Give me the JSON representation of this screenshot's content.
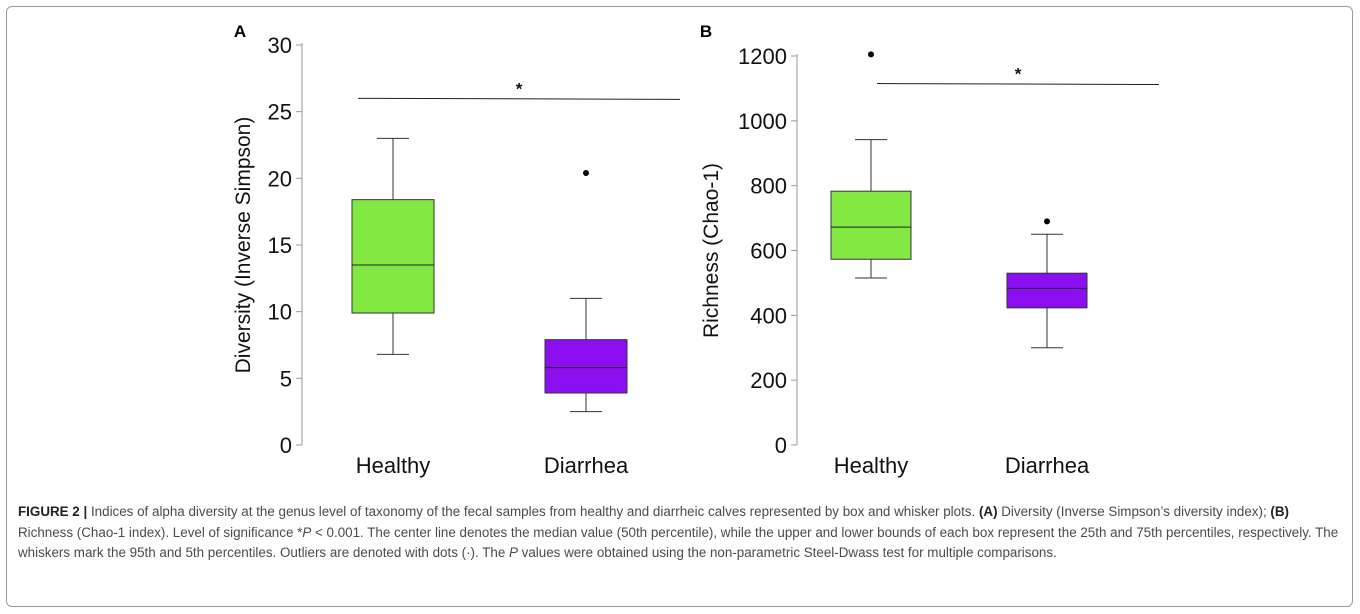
{
  "chart_data": [
    {
      "panel_label": "A",
      "type": "box",
      "ylabel": "Diversity (Inverse Simpson)",
      "xlabel": "",
      "categories": [
        "Healthy",
        "Diarrhea"
      ],
      "ylim": [
        0,
        30
      ],
      "yticks": [
        0,
        5,
        10,
        15,
        20,
        25,
        30
      ],
      "grid": false,
      "boxes": [
        {
          "category": "Healthy",
          "whisker_low": 6.8,
          "q1": 9.9,
          "median": 13.5,
          "q3": 18.4,
          "whisker_high": 23.0,
          "outliers": [],
          "color": "#84e843"
        },
        {
          "category": "Diarrhea",
          "whisker_low": 2.5,
          "q1": 3.9,
          "median": 5.8,
          "q3": 7.9,
          "whisker_high": 11.0,
          "outliers": [
            20.4
          ],
          "color": "#8b0ff1"
        }
      ],
      "significance": {
        "label": "*",
        "y": 26.0
      }
    },
    {
      "panel_label": "B",
      "type": "box",
      "ylabel": "Richness (Chao-1)",
      "xlabel": "",
      "categories": [
        "Healthy",
        "Diarrhea"
      ],
      "ylim": [
        0,
        1200
      ],
      "yticks": [
        0,
        200,
        400,
        600,
        800,
        1000,
        1200
      ],
      "grid": false,
      "boxes": [
        {
          "category": "Healthy",
          "whisker_low": 515,
          "q1": 573,
          "median": 672,
          "q3": 783,
          "whisker_high": 942,
          "outliers": [
            1205
          ],
          "color": "#84e843"
        },
        {
          "category": "Diarrhea",
          "whisker_low": 300,
          "q1": 423,
          "median": 483,
          "q3": 530,
          "whisker_high": 650,
          "outliers": [
            690
          ],
          "color": "#8b0ff1"
        }
      ],
      "significance": {
        "label": "*",
        "y": 1115
      }
    }
  ],
  "caption": {
    "figure_label": "FIGURE 2 |",
    "text1": " Indices of alpha diversity at the genus level of taxonomy of the fecal samples from healthy and diarrheic calves represented by box and whisker plots. ",
    "ref_a": "(A)",
    "text2": " Diversity (Inverse Simpson’s diversity index); ",
    "ref_b": "(B)",
    "text3": " Richness (Chao-1 index). Level of significance *",
    "p1": "P",
    "text4": " < 0.001. The center line denotes the median value (50th percentile), while the upper and lower bounds of each box represent the 25th and 75th percentiles, respectively. The whiskers mark the 95th and 5th percentiles. Outliers are denoted with dots (·). The ",
    "p2": "P",
    "text5": " values were obtained using the non-parametric Steel-Dwass test for multiple comparisons."
  }
}
